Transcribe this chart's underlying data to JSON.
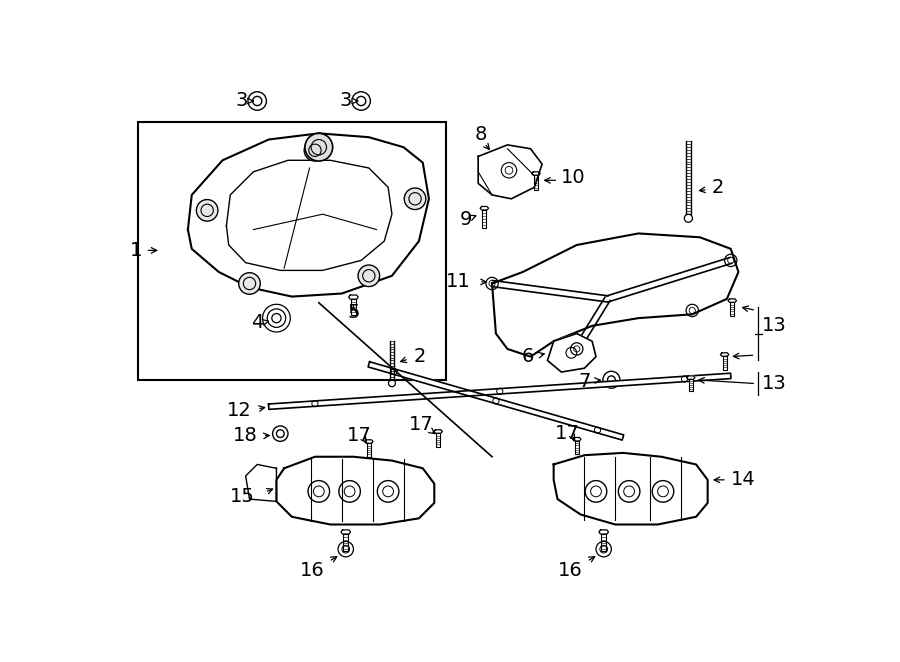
{
  "bg_color": "#ffffff",
  "fig_width": 9.0,
  "fig_height": 6.62,
  "dpi": 100,
  "lc": "#000000",
  "lw": 1.0,
  "fs": 13
}
